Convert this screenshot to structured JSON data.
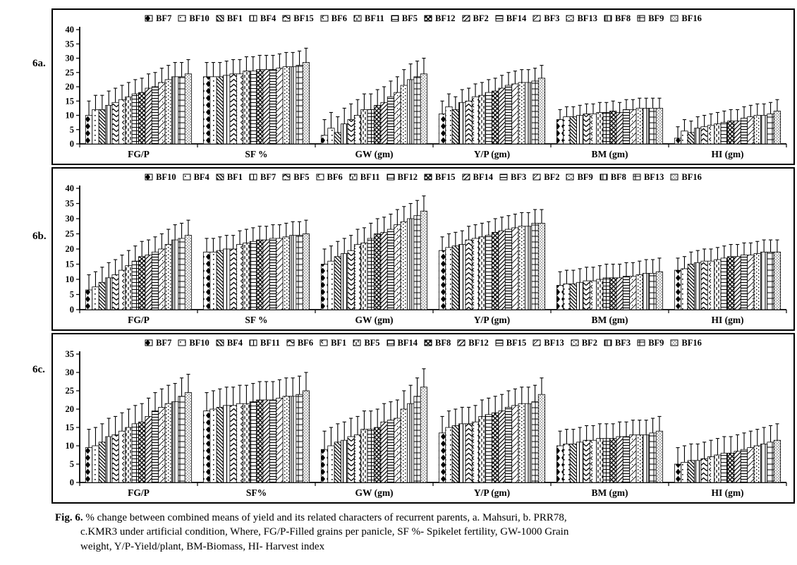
{
  "figure": {
    "caption": {
      "label": "Fig. 6.",
      "lines": [
        "% change between combined means of yield and its related characters of recurrent parents,  a. Mahsuri, b. PRR78,",
        "c.KMR3 under artificial condition, Where,    FG/P-Filled grains per panicle, SF %- Spikelet fertility, GW-1000 Grain",
        "weight, Y/P-Yield/plant, BM-Biomass,  HI- Harvest index"
      ]
    }
  },
  "chart_data": [
    {
      "id": "6a",
      "panel_label": "6a.",
      "type": "bar",
      "title": "",
      "xlabel": "",
      "ylabel": "",
      "ylim": [
        0,
        40
      ],
      "ytick_step": 5,
      "grid": false,
      "legend_position": "top",
      "bar_color": "black-white-patterns",
      "categories": [
        "FG/P",
        "SF %",
        "GW (gm)",
        "Y/P (gm)",
        "BM (gm)",
        "HI (gm)"
      ],
      "errors_by_category": [
        5,
        5,
        5.5,
        4.5,
        3.5,
        4
      ],
      "series": [
        {
          "name": "BF7",
          "values": [
            10,
            23.5,
            3,
            10.5,
            8.5,
            2
          ]
        },
        {
          "name": "BF10",
          "values": [
            12,
            23.5,
            5.5,
            13,
            9.5,
            4.5
          ]
        },
        {
          "name": "BF1",
          "values": [
            12,
            23.5,
            4,
            12,
            9.5,
            4
          ]
        },
        {
          "name": "BF4",
          "values": [
            13.5,
            24,
            7,
            14.5,
            10,
            5.5
          ]
        },
        {
          "name": "BF15",
          "values": [
            14.5,
            24.5,
            8.5,
            15,
            10.5,
            6
          ]
        },
        {
          "name": "BF6",
          "values": [
            15.5,
            24.5,
            10,
            16.5,
            10.5,
            6.5
          ]
        },
        {
          "name": "BF11",
          "values": [
            16.5,
            25.5,
            12,
            17,
            11,
            7
          ]
        },
        {
          "name": "BF5",
          "values": [
            17.5,
            25.5,
            12,
            18,
            11,
            7.5
          ]
        },
        {
          "name": "BF12",
          "values": [
            18,
            26,
            13.5,
            18.5,
            11.5,
            8
          ]
        },
        {
          "name": "BF2",
          "values": [
            19.5,
            26,
            14.5,
            19.5,
            11,
            8
          ]
        },
        {
          "name": "BF14",
          "values": [
            20,
            26,
            16.5,
            20.5,
            12,
            9
          ]
        },
        {
          "name": "BF3",
          "values": [
            21.5,
            26.5,
            18,
            21,
            12,
            9.5
          ]
        },
        {
          "name": "BF13",
          "values": [
            22.5,
            27,
            20.5,
            21.5,
            12.5,
            10
          ]
        },
        {
          "name": "BF8",
          "values": [
            23.5,
            27,
            22.5,
            21.5,
            12.5,
            10
          ]
        },
        {
          "name": "BF9",
          "values": [
            23.5,
            27.5,
            23.5,
            22,
            12.5,
            10.5
          ]
        },
        {
          "name": "BF16",
          "values": [
            24.5,
            28.5,
            24.5,
            23,
            12.5,
            11.5
          ]
        }
      ]
    },
    {
      "id": "6b",
      "panel_label": "6b.",
      "type": "bar",
      "title": "",
      "xlabel": "",
      "ylabel": "",
      "ylim": [
        0,
        40
      ],
      "ytick_step": 5,
      "grid": false,
      "legend_position": "top",
      "bar_color": "black-white-patterns",
      "categories": [
        "FG/P",
        "SF %",
        "GW (gm)",
        "Y/P (gm)",
        "BM (gm)",
        "HI (gm)"
      ],
      "errors_by_category": [
        5,
        4.5,
        5,
        4.5,
        4.5,
        4
      ],
      "series": [
        {
          "name": "BF10",
          "values": [
            6.5,
            19,
            15,
            19.5,
            8,
            13
          ]
        },
        {
          "name": "BF4",
          "values": [
            7.5,
            19,
            16,
            20.5,
            8.5,
            13.5
          ]
        },
        {
          "name": "BF1",
          "values": [
            9,
            19.5,
            17.5,
            21,
            8.5,
            15
          ]
        },
        {
          "name": "BF7",
          "values": [
            10.5,
            20,
            18.5,
            21.5,
            9,
            15.5
          ]
        },
        {
          "name": "BF5",
          "values": [
            11.5,
            20,
            19.5,
            23,
            9.5,
            16
          ]
        },
        {
          "name": "BF6",
          "values": [
            13,
            21.5,
            21.5,
            23.5,
            9.5,
            16
          ]
        },
        {
          "name": "BF11",
          "values": [
            14.5,
            22,
            22,
            24,
            10,
            16.5
          ]
        },
        {
          "name": "BF12",
          "values": [
            16,
            22.5,
            23.5,
            24.5,
            10.5,
            17
          ]
        },
        {
          "name": "BF15",
          "values": [
            17.5,
            23,
            25,
            25.5,
            10.5,
            17.5
          ]
        },
        {
          "name": "BF14",
          "values": [
            18,
            23,
            25.5,
            26,
            10.5,
            17.5
          ]
        },
        {
          "name": "BF3",
          "values": [
            19,
            23.5,
            26.5,
            26.5,
            11,
            18
          ]
        },
        {
          "name": "BF2",
          "values": [
            20,
            23.5,
            28,
            27,
            11,
            18
          ]
        },
        {
          "name": "BF9",
          "values": [
            21.5,
            24,
            29,
            27.5,
            11.5,
            18.5
          ]
        },
        {
          "name": "BF8",
          "values": [
            23,
            24.5,
            30,
            27.5,
            12,
            19
          ]
        },
        {
          "name": "BF13",
          "values": [
            23.5,
            24.5,
            31,
            28.5,
            12,
            19
          ]
        },
        {
          "name": "BF16",
          "values": [
            24.5,
            25,
            32.5,
            28.5,
            12.5,
            19
          ]
        }
      ]
    },
    {
      "id": "6c",
      "panel_label": "6c.",
      "type": "bar",
      "title": "",
      "xlabel": "",
      "ylabel": "",
      "ylim": [
        0,
        35
      ],
      "ytick_step": 5,
      "grid": false,
      "legend_position": "top",
      "bar_color": "black-white-patterns",
      "categories": [
        "FG/P",
        "SF%",
        "GW (gm)",
        "Y/P (gm)",
        "BM (gm)",
        "HI (gm)"
      ],
      "errors_by_category": [
        5,
        5,
        5,
        4.5,
        4,
        4.5
      ],
      "series": [
        {
          "name": "BF7",
          "values": [
            9.5,
            19.5,
            9,
            13.5,
            10,
            5
          ]
        },
        {
          "name": "BF10",
          "values": [
            10,
            20,
            10,
            15,
            10.5,
            5.5
          ]
        },
        {
          "name": "BF4",
          "values": [
            11,
            20.5,
            11,
            15.5,
            10.5,
            6
          ]
        },
        {
          "name": "BF11",
          "values": [
            12.5,
            21,
            11.5,
            16,
            11,
            6
          ]
        },
        {
          "name": "BF6",
          "values": [
            13,
            21,
            12.5,
            16,
            11.5,
            6.5
          ]
        },
        {
          "name": "BF1",
          "values": [
            14,
            21.5,
            13,
            16.5,
            11.5,
            7
          ]
        },
        {
          "name": "BF5",
          "values": [
            15,
            21.5,
            14.5,
            18,
            12,
            7.5
          ]
        },
        {
          "name": "BF14",
          "values": [
            16,
            22,
            14.5,
            18.5,
            12,
            8
          ]
        },
        {
          "name": "BF8",
          "values": [
            16.5,
            22.5,
            15,
            19,
            12,
            8
          ]
        },
        {
          "name": "BF12",
          "values": [
            18,
            22.5,
            16.5,
            19.5,
            12.5,
            8.5
          ]
        },
        {
          "name": "BF15",
          "values": [
            19.5,
            22.5,
            17,
            20.5,
            12.5,
            9
          ]
        },
        {
          "name": "BF13",
          "values": [
            20.5,
            23,
            17.5,
            21,
            13,
            9.5
          ]
        },
        {
          "name": "BF2",
          "values": [
            21.5,
            23.5,
            20,
            21.5,
            13,
            10
          ]
        },
        {
          "name": "BF3",
          "values": [
            22,
            23.5,
            21.5,
            21.5,
            13,
            10.5
          ]
        },
        {
          "name": "BF9",
          "values": [
            23.5,
            24,
            23.5,
            22,
            13.5,
            11
          ]
        },
        {
          "name": "BF16",
          "values": [
            24.5,
            25,
            26,
            24,
            14,
            11.5
          ]
        }
      ]
    }
  ]
}
